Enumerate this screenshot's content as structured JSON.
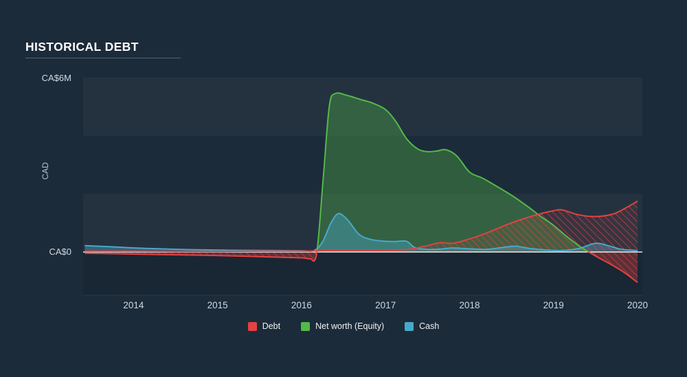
{
  "title": "HISTORICAL DEBT",
  "y_axis": {
    "top_label": "CA$6M",
    "zero_label": "CA$0",
    "unit_label": "CAD"
  },
  "x_ticks": [
    "2014",
    "2015",
    "2016",
    "2017",
    "2018",
    "2019",
    "2020"
  ],
  "legend": [
    {
      "label": "Debt",
      "color": "#e64141"
    },
    {
      "label": "Net worth (Equity)",
      "color": "#54b948"
    },
    {
      "label": "Cash",
      "color": "#47a9c9"
    }
  ],
  "chart_data": {
    "type": "area",
    "title": "HISTORICAL DEBT",
    "y_unit": "CA$ millions",
    "x_range": [
      2013.4,
      2020.0
    ],
    "y_max": 6,
    "y_axis_labels": [
      "CA$0",
      "CA$6M"
    ],
    "legend_position": "bottom-center",
    "series": [
      {
        "name": "Net worth (Equity)",
        "color": "#54b948",
        "negative_color": "#e64141",
        "fill": "rgba(84,185,72,0.35)",
        "negative_fill": "rgba(220,62,62,0.28)",
        "style": "area",
        "points": [
          [
            2013.42,
            -0.04
          ],
          [
            2014.0,
            -0.07
          ],
          [
            2014.6,
            -0.1
          ],
          [
            2015.0,
            -0.12
          ],
          [
            2015.5,
            -0.16
          ],
          [
            2016.0,
            -0.2
          ],
          [
            2016.1,
            -0.23
          ],
          [
            2016.18,
            -0.05
          ],
          [
            2016.26,
            2.6
          ],
          [
            2016.33,
            5.0
          ],
          [
            2016.4,
            5.45
          ],
          [
            2016.55,
            5.38
          ],
          [
            2016.7,
            5.25
          ],
          [
            2016.85,
            5.12
          ],
          [
            2017.0,
            4.9
          ],
          [
            2017.12,
            4.5
          ],
          [
            2017.25,
            3.9
          ],
          [
            2017.38,
            3.55
          ],
          [
            2017.5,
            3.45
          ],
          [
            2017.62,
            3.48
          ],
          [
            2017.72,
            3.52
          ],
          [
            2017.85,
            3.3
          ],
          [
            2018.0,
            2.75
          ],
          [
            2018.15,
            2.55
          ],
          [
            2018.3,
            2.3
          ],
          [
            2018.5,
            1.95
          ],
          [
            2018.7,
            1.55
          ],
          [
            2018.85,
            1.22
          ],
          [
            2019.0,
            0.92
          ],
          [
            2019.15,
            0.55
          ],
          [
            2019.3,
            0.22
          ],
          [
            2019.42,
            0.0
          ],
          [
            2019.55,
            -0.22
          ],
          [
            2019.7,
            -0.45
          ],
          [
            2019.85,
            -0.72
          ],
          [
            2020.0,
            -1.05
          ]
        ]
      },
      {
        "name": "Cash",
        "color": "#47a9c9",
        "fill": "rgba(71,169,201,0.42)",
        "style": "area",
        "points": [
          [
            2013.42,
            0.22
          ],
          [
            2013.8,
            0.17
          ],
          [
            2014.2,
            0.12
          ],
          [
            2014.7,
            0.08
          ],
          [
            2015.2,
            0.06
          ],
          [
            2015.7,
            0.05
          ],
          [
            2016.0,
            0.04
          ],
          [
            2016.15,
            0.05
          ],
          [
            2016.25,
            0.35
          ],
          [
            2016.35,
            1.0
          ],
          [
            2016.44,
            1.32
          ],
          [
            2016.55,
            1.1
          ],
          [
            2016.68,
            0.62
          ],
          [
            2016.8,
            0.45
          ],
          [
            2016.95,
            0.38
          ],
          [
            2017.1,
            0.36
          ],
          [
            2017.25,
            0.37
          ],
          [
            2017.35,
            0.15
          ],
          [
            2017.5,
            0.09
          ],
          [
            2017.65,
            0.1
          ],
          [
            2017.8,
            0.14
          ],
          [
            2018.0,
            0.11
          ],
          [
            2018.2,
            0.09
          ],
          [
            2018.4,
            0.16
          ],
          [
            2018.55,
            0.2
          ],
          [
            2018.7,
            0.13
          ],
          [
            2018.9,
            0.07
          ],
          [
            2019.1,
            0.05
          ],
          [
            2019.3,
            0.12
          ],
          [
            2019.5,
            0.3
          ],
          [
            2019.65,
            0.22
          ],
          [
            2019.8,
            0.1
          ],
          [
            2020.0,
            0.05
          ]
        ]
      },
      {
        "name": "Debt",
        "color": "#e64141",
        "fill": "hatch",
        "style": "hatched-area",
        "points": [
          [
            2013.42,
            0.03
          ],
          [
            2014.0,
            0.03
          ],
          [
            2014.5,
            0.02
          ],
          [
            2015.0,
            0.02
          ],
          [
            2015.5,
            0.03
          ],
          [
            2016.0,
            0.03
          ],
          [
            2016.2,
            0.04
          ],
          [
            2016.5,
            0.06
          ],
          [
            2016.9,
            0.06
          ],
          [
            2017.1,
            0.06
          ],
          [
            2017.3,
            0.1
          ],
          [
            2017.5,
            0.22
          ],
          [
            2017.65,
            0.32
          ],
          [
            2017.8,
            0.3
          ],
          [
            2018.0,
            0.45
          ],
          [
            2018.2,
            0.65
          ],
          [
            2018.45,
            0.95
          ],
          [
            2018.65,
            1.15
          ],
          [
            2018.85,
            1.32
          ],
          [
            2019.0,
            1.42
          ],
          [
            2019.1,
            1.45
          ],
          [
            2019.3,
            1.28
          ],
          [
            2019.5,
            1.22
          ],
          [
            2019.7,
            1.3
          ],
          [
            2019.85,
            1.5
          ],
          [
            2020.0,
            1.75
          ]
        ]
      }
    ]
  }
}
